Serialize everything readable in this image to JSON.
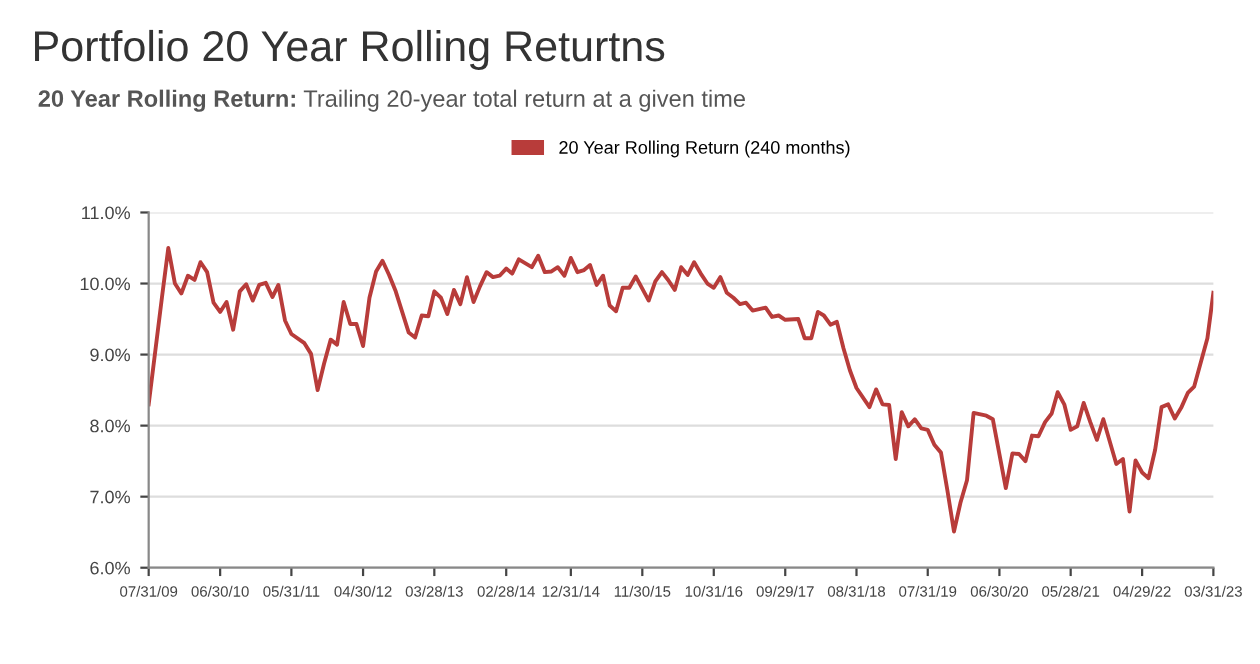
{
  "chart_data": {
    "type": "line",
    "title": "Portfolio 20 Year Rolling Returtns",
    "subtitle": "20 Year Rolling Return: Trailing 20-year total return at a given time",
    "legend": "top",
    "grid": "y",
    "marker": "none",
    "line_style": "solid",
    "xlim": [
      "2009-07",
      "2023-03"
    ],
    "xticks": [
      {
        "value": "2009-07",
        "label": "07/31/09"
      },
      {
        "value": "2010-06",
        "label": "06/30/10"
      },
      {
        "value": "2011-05",
        "label": "05/31/11"
      },
      {
        "value": "2012-04",
        "label": "04/30/12"
      },
      {
        "value": "2013-03",
        "label": "03/28/13"
      },
      {
        "value": "2014-02",
        "label": "02/28/14"
      },
      {
        "value": "2014-12",
        "label": "12/31/14"
      },
      {
        "value": "2015-11",
        "label": "11/30/15"
      },
      {
        "value": "2016-10",
        "label": "10/31/16"
      },
      {
        "value": "2017-09",
        "label": "09/29/17"
      },
      {
        "value": "2018-08",
        "label": "08/31/18"
      },
      {
        "value": "2019-07",
        "label": "07/31/19"
      },
      {
        "value": "2020-06",
        "label": "06/30/20"
      },
      {
        "value": "2021-05",
        "label": "05/28/21"
      },
      {
        "value": "2022-04",
        "label": "04/29/22"
      },
      {
        "value": "2023-03",
        "label": "03/31/23"
      }
    ],
    "ylim": [
      6,
      11
    ],
    "yticks": [
      {
        "value": 6,
        "label": "6.0%"
      },
      {
        "value": 7,
        "label": "7.0%"
      },
      {
        "value": 8,
        "label": "8.0%"
      },
      {
        "value": 9,
        "label": "9.0%"
      },
      {
        "value": 10,
        "label": "10.0%"
      },
      {
        "value": 11,
        "label": "11.0%"
      }
    ],
    "series": [
      {
        "name": "20 Year Rolling Return (240 months)",
        "color": "#b83c3a",
        "x": [
          "2009-07",
          "2009-09",
          "2009-10",
          "2009-11",
          "2009-12",
          "2010-01",
          "2010-02",
          "2010-03",
          "2010-04",
          "2010-05",
          "2010-06",
          "2010-07",
          "2010-08",
          "2010-09",
          "2010-10",
          "2010-11",
          "2010-12",
          "2011-01",
          "2011-02",
          "2011-03",
          "2011-04",
          "2011-05",
          "2011-07",
          "2011-08",
          "2011-09",
          "2011-10",
          "2011-11",
          "2011-12",
          "2012-01",
          "2012-02",
          "2012-03",
          "2012-04",
          "2012-05",
          "2012-06",
          "2012-07",
          "2012-08",
          "2012-09",
          "2012-11",
          "2012-12",
          "2013-01",
          "2013-02",
          "2013-03",
          "2013-04",
          "2013-05",
          "2013-06",
          "2013-07",
          "2013-08",
          "2013-09",
          "2013-10",
          "2013-11",
          "2013-12",
          "2014-01",
          "2014-02",
          "2014-03",
          "2014-04",
          "2014-06",
          "2014-07",
          "2014-08",
          "2014-09",
          "2014-10",
          "2014-11",
          "2014-12",
          "2015-01",
          "2015-02",
          "2015-03",
          "2015-04",
          "2015-05",
          "2015-06",
          "2015-07",
          "2015-08",
          "2015-09",
          "2015-10",
          "2015-12",
          "2016-01",
          "2016-02",
          "2016-03",
          "2016-04",
          "2016-05",
          "2016-06",
          "2016-07",
          "2016-08",
          "2016-09",
          "2016-10",
          "2016-11",
          "2016-12",
          "2017-01",
          "2017-02",
          "2017-03",
          "2017-04",
          "2017-06",
          "2017-07",
          "2017-08",
          "2017-09",
          "2017-11",
          "2017-12",
          "2018-01",
          "2018-02",
          "2018-03",
          "2018-04",
          "2018-05",
          "2018-06",
          "2018-07",
          "2018-08",
          "2018-10",
          "2018-11",
          "2018-12",
          "2019-01",
          "2019-02",
          "2019-03",
          "2019-04",
          "2019-05",
          "2019-06",
          "2019-07",
          "2019-08",
          "2019-09",
          "2019-10",
          "2019-11",
          "2019-12",
          "2020-01",
          "2020-02",
          "2020-04",
          "2020-05",
          "2020-07",
          "2020-08",
          "2020-09",
          "2020-10",
          "2020-11",
          "2020-12",
          "2021-01",
          "2021-02",
          "2021-03",
          "2021-04",
          "2021-05",
          "2021-06",
          "2021-07",
          "2021-08",
          "2021-09",
          "2021-10",
          "2021-12",
          "2022-01",
          "2022-02",
          "2022-03",
          "2022-04",
          "2022-05",
          "2022-06",
          "2022-07",
          "2022-08",
          "2022-09",
          "2022-10",
          "2022-11",
          "2022-12",
          "2023-02",
          "2023-03"
        ],
        "values": [
          8.3,
          9.8,
          10.5,
          10.0,
          9.86,
          10.11,
          10.05,
          10.3,
          10.16,
          9.73,
          9.6,
          9.74,
          9.35,
          9.89,
          9.99,
          9.76,
          9.98,
          10.01,
          9.81,
          9.98,
          9.48,
          9.29,
          9.16,
          9.01,
          8.5,
          8.87,
          9.21,
          9.14,
          9.74,
          9.43,
          9.43,
          9.12,
          9.8,
          10.17,
          10.32,
          10.12,
          9.89,
          9.31,
          9.24,
          9.55,
          9.54,
          9.89,
          9.8,
          9.57,
          9.91,
          9.71,
          10.09,
          9.74,
          9.96,
          10.16,
          10.09,
          10.11,
          10.21,
          10.14,
          10.34,
          10.23,
          10.39,
          10.16,
          10.17,
          10.23,
          10.11,
          10.36,
          10.16,
          10.19,
          10.26,
          9.98,
          10.11,
          9.69,
          9.61,
          9.94,
          9.94,
          10.1,
          9.76,
          10.03,
          10.16,
          10.05,
          9.91,
          10.23,
          10.12,
          10.3,
          10.14,
          10.0,
          9.94,
          10.09,
          9.87,
          9.8,
          9.71,
          9.73,
          9.62,
          9.66,
          9.53,
          9.55,
          9.49,
          9.5,
          9.23,
          9.23,
          9.6,
          9.55,
          9.42,
          9.46,
          9.09,
          8.78,
          8.53,
          8.26,
          8.51,
          8.3,
          8.29,
          7.53,
          8.19,
          7.99,
          8.09,
          7.96,
          7.94,
          7.73,
          7.62,
          7.09,
          6.51,
          6.91,
          7.23,
          8.18,
          8.14,
          8.09,
          7.12,
          7.61,
          7.6,
          7.5,
          7.86,
          7.85,
          8.05,
          8.17,
          8.47,
          8.3,
          7.94,
          7.99,
          8.32,
          8.05,
          7.8,
          8.09,
          7.46,
          7.53,
          6.79,
          7.51,
          7.34,
          7.26,
          7.66,
          8.26,
          8.3,
          8.1,
          8.25,
          8.46,
          8.55,
          9.23,
          9.87
        ]
      }
    ]
  }
}
